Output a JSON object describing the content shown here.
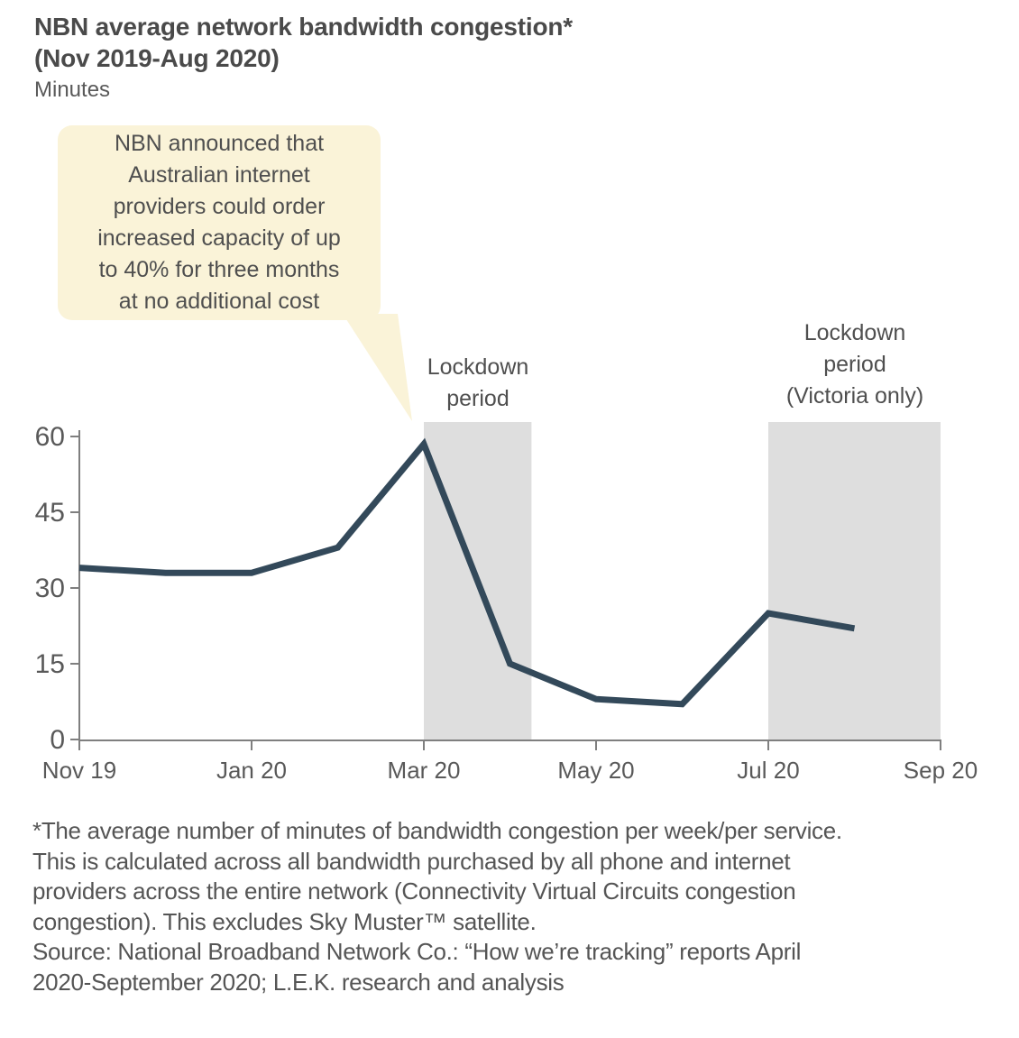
{
  "header": {
    "title_line1": "NBN average network bandwidth congestion*",
    "title_line2": "(Nov 2019-Aug 2020)",
    "units_label": "Minutes"
  },
  "annotations": {
    "callout_text": "NBN announced that\nAustralian internet\nproviders could order\nincreased capacity of up\nto 40% for three months\nat no additional cost",
    "region_label_1": "Lockdown\nperiod",
    "region_label_2": "Lockdown\nperiod\n(Victoria only)"
  },
  "footnote_text": "*The average number of minutes of bandwidth congestion per week/per service.\nThis is calculated across all bandwidth purchased by all phone and internet\nproviders across the entire network (Connectivity Virtual Circuits congestion\ncongestion). This excludes Sky Muster™ satellite.\nSource: National Broadband Network Co.: “How we’re tracking” reports April\n2020-September 2020; L.E.K. research and analysis",
  "colors": {
    "line": "#33495a",
    "shaded_region": "#dedede",
    "callout_fill": "#faf3d8",
    "axis": "#7f7f7f",
    "text_dark": "#4a4a4a",
    "text_gray": "#595959"
  },
  "chart_data": {
    "type": "line",
    "title": "NBN average network bandwidth congestion*",
    "subtitle": "(Nov 2019-Aug 2020)",
    "ylabel": "Minutes",
    "x": [
      "Nov 19",
      "Dec 19",
      "Jan 20",
      "Feb 20",
      "Mar 20",
      "Apr 20",
      "May 20",
      "Jun 20",
      "Jul 20",
      "Aug 20"
    ],
    "values": [
      34,
      33,
      33,
      38,
      58.5,
      15,
      8,
      7,
      25,
      22
    ],
    "x_tick_labels": [
      "Nov 19",
      "Jan 20",
      "Mar 20",
      "May 20",
      "Jul 20",
      "Sep 20"
    ],
    "x_tick_month_indices": [
      0,
      2,
      4,
      6,
      8,
      10
    ],
    "y_ticks": [
      0,
      15,
      30,
      45,
      60
    ],
    "ylim": [
      0,
      62
    ],
    "grid": false,
    "legend": "none",
    "shaded_regions": [
      {
        "label": "Lockdown period",
        "start_month_index": 4,
        "end_month_index": 5.25
      },
      {
        "label": "Lockdown period (Victoria only)",
        "start_month_index": 8,
        "end_month_index": 10
      }
    ]
  }
}
